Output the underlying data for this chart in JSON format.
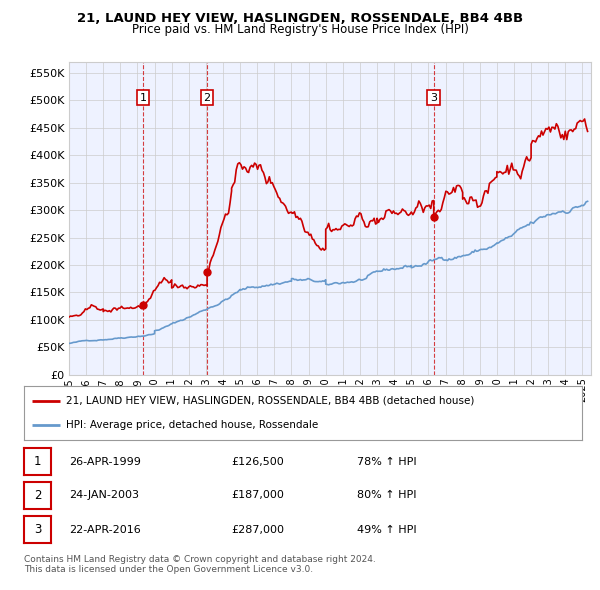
{
  "title1": "21, LAUND HEY VIEW, HASLINGDEN, ROSSENDALE, BB4 4BB",
  "title2": "Price paid vs. HM Land Registry's House Price Index (HPI)",
  "ylabel_ticks": [
    "£0",
    "£50K",
    "£100K",
    "£150K",
    "£200K",
    "£250K",
    "£300K",
    "£350K",
    "£400K",
    "£450K",
    "£500K",
    "£550K"
  ],
  "ytick_values": [
    0,
    50000,
    100000,
    150000,
    200000,
    250000,
    300000,
    350000,
    400000,
    450000,
    500000,
    550000
  ],
  "xmin": 1995.0,
  "xmax": 2025.5,
  "ymin": 0,
  "ymax": 570000,
  "sale_dates": [
    1999.32,
    2003.07,
    2016.31
  ],
  "sale_prices": [
    126500,
    187000,
    287000
  ],
  "sale_labels": [
    "1",
    "2",
    "3"
  ],
  "red_line_color": "#cc0000",
  "blue_line_color": "#6699cc",
  "dashed_color": "#cc0000",
  "legend_line1": "21, LAUND HEY VIEW, HASLINGDEN, ROSSENDALE, BB4 4BB (detached house)",
  "legend_line2": "HPI: Average price, detached house, Rossendale",
  "table_rows": [
    {
      "num": "1",
      "date": "26-APR-1999",
      "price": "£126,500",
      "change": "78% ↑ HPI"
    },
    {
      "num": "2",
      "date": "24-JAN-2003",
      "price": "£187,000",
      "change": "80% ↑ HPI"
    },
    {
      "num": "3",
      "date": "22-APR-2016",
      "price": "£287,000",
      "change": "49% ↑ HPI"
    }
  ],
  "footnote1": "Contains HM Land Registry data © Crown copyright and database right 2024.",
  "footnote2": "This data is licensed under the Open Government Licence v3.0.",
  "bg_color": "#ffffff",
  "plot_bg_color": "#eef2ff",
  "grid_color": "#cccccc"
}
